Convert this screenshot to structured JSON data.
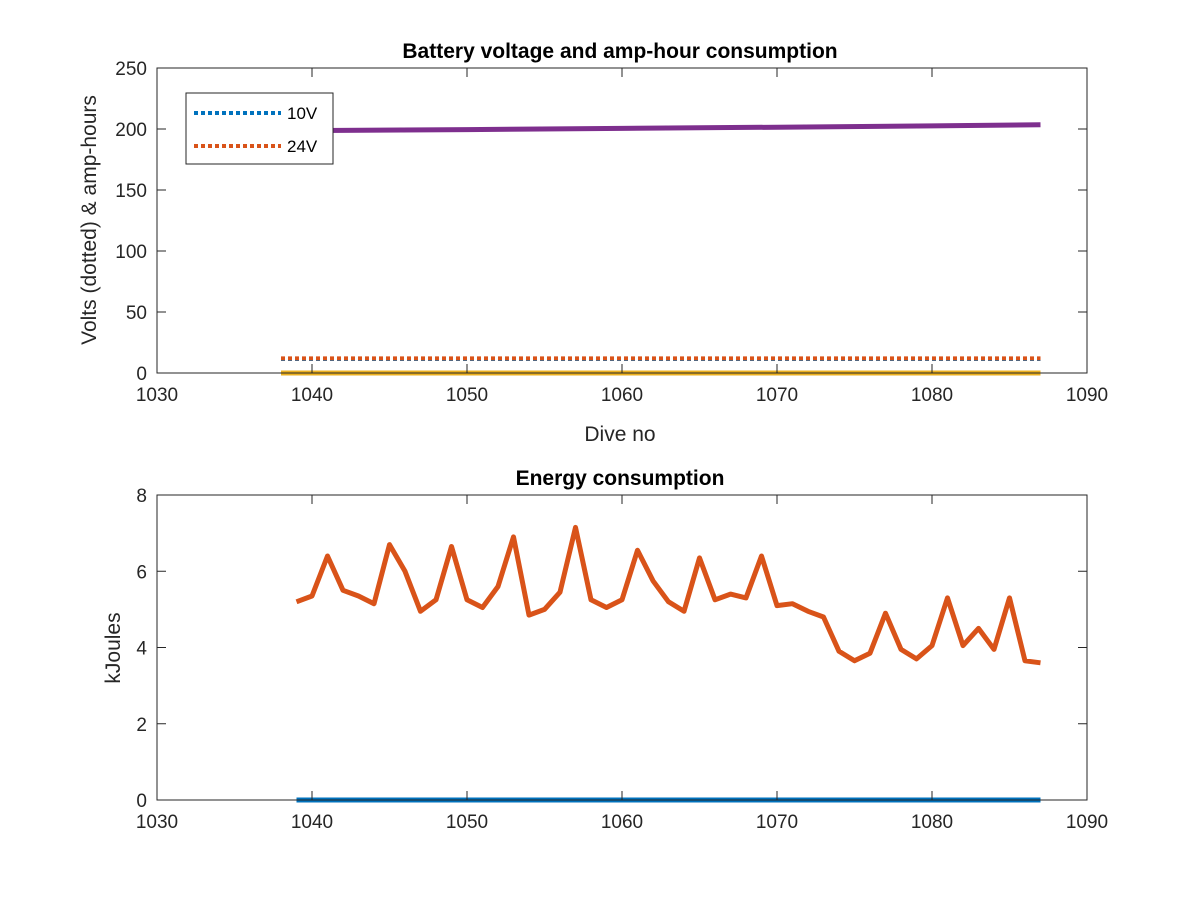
{
  "chart_data": [
    {
      "type": "line",
      "title": "Battery voltage and amp-hour consumption",
      "xlabel": "Dive no",
      "ylabel": "Volts (dotted) & amp-hours",
      "xlim": [
        1030,
        1090
      ],
      "ylim": [
        0,
        250
      ],
      "xticks": [
        1030,
        1040,
        1050,
        1060,
        1070,
        1080,
        1090
      ],
      "yticks": [
        0,
        50,
        100,
        150,
        200,
        250
      ],
      "grid": false,
      "legend": {
        "placement": "top-left",
        "entries": [
          "10V",
          "24V"
        ]
      },
      "series": [
        {
          "name": "10V",
          "style": "dotted",
          "color": "#0072BD",
          "x": [
            1038,
            1087
          ],
          "y": [
            11.5,
            11.5
          ]
        },
        {
          "name": "24V",
          "style": "dotted",
          "color": "#D95319",
          "x": [
            1038,
            1087
          ],
          "y": [
            12,
            12
          ]
        },
        {
          "style": "solid",
          "color": "#EDB120",
          "x": [
            1038,
            1087
          ],
          "y": [
            0,
            0
          ]
        },
        {
          "style": "solid",
          "color": "#7E2F8E",
          "x": [
            1038,
            1050,
            1060,
            1070,
            1080,
            1087
          ],
          "y": [
            198.5,
            199.5,
            200.5,
            201.5,
            202.5,
            203.5
          ]
        }
      ]
    },
    {
      "type": "line",
      "title": "Energy consumption",
      "xlabel": "",
      "ylabel": "kJoules",
      "xlim": [
        1030,
        1090
      ],
      "ylim": [
        0,
        8
      ],
      "xticks": [
        1030,
        1040,
        1050,
        1060,
        1070,
        1080,
        1090
      ],
      "yticks": [
        0,
        2,
        4,
        6,
        8
      ],
      "grid": false,
      "series": [
        {
          "style": "solid",
          "color": "#0072BD",
          "x": [
            1039,
            1087
          ],
          "y": [
            0,
            0
          ]
        },
        {
          "style": "solid",
          "color": "#D95319",
          "x": [
            1039,
            1040,
            1041,
            1042,
            1043,
            1044,
            1045,
            1046,
            1047,
            1048,
            1049,
            1050,
            1051,
            1052,
            1053,
            1054,
            1055,
            1056,
            1057,
            1058,
            1059,
            1060,
            1061,
            1062,
            1063,
            1064,
            1065,
            1066,
            1067,
            1068,
            1069,
            1070,
            1071,
            1072,
            1073,
            1074,
            1075,
            1076,
            1077,
            1078,
            1079,
            1080,
            1081,
            1082,
            1083,
            1084,
            1085,
            1086,
            1087
          ],
          "y": [
            5.2,
            5.35,
            6.4,
            5.5,
            5.35,
            5.15,
            6.7,
            6.0,
            4.95,
            5.25,
            6.65,
            5.25,
            5.05,
            5.6,
            6.9,
            4.85,
            5.0,
            5.45,
            7.15,
            5.25,
            5.05,
            5.25,
            6.55,
            5.75,
            5.2,
            4.95,
            6.35,
            5.25,
            5.4,
            5.3,
            6.4,
            5.1,
            5.15,
            4.95,
            4.8,
            3.9,
            3.65,
            3.85,
            4.9,
            3.95,
            3.7,
            4.05,
            5.3,
            4.05,
            4.5,
            3.95,
            5.3,
            3.65,
            3.6
          ]
        }
      ]
    }
  ]
}
